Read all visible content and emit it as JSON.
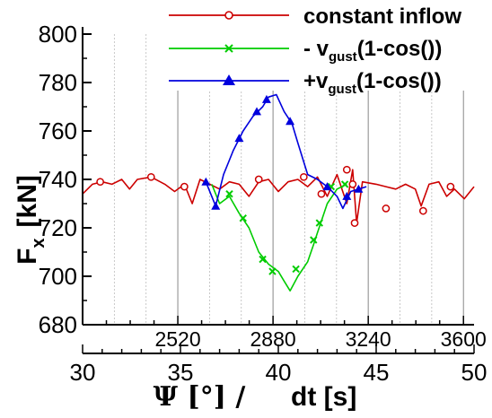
{
  "chart_data": {
    "type": "line",
    "title": "",
    "xlabel_psi": "Ψ [°] /",
    "xlabel_time": "dt [s]",
    "ylabel": "F",
    "ylabel_sub": "x",
    "ylabel_unit": "[kN]",
    "ylim": [
      680,
      800
    ],
    "yticks": [
      680,
      700,
      720,
      740,
      760,
      780,
      800
    ],
    "psi_xlim": [
      2160,
      3640
    ],
    "psi_ticks": [
      2520,
      2880,
      3240,
      3600
    ],
    "time_xlim": [
      30,
      50
    ],
    "time_ticks": [
      30,
      35,
      40,
      45,
      50
    ],
    "grid": "vertical",
    "legend_position": "top-right",
    "legend": [
      {
        "name": "constant inflow",
        "color": "#cc0000",
        "marker": "circle"
      },
      {
        "name_prefix": "- v",
        "name_sub": "gust",
        "name_suffix": "(1-cos())",
        "color": "#00cc00",
        "marker": "x"
      },
      {
        "name_prefix": "+v",
        "name_sub": "gust",
        "name_suffix": "(1-cos())",
        "color": "#0000dd",
        "marker": "triangle"
      }
    ],
    "series": [
      {
        "color": "#cc0000",
        "marker": "circle",
        "points": [
          [
            30.0,
            734
          ],
          [
            30.5,
            738
          ],
          [
            31.0,
            739
          ],
          [
            31.5,
            738
          ],
          [
            32.0,
            740
          ],
          [
            32.4,
            736
          ],
          [
            32.8,
            740
          ],
          [
            33.5,
            741
          ],
          [
            34.2,
            738
          ],
          [
            34.7,
            735
          ],
          [
            35.2,
            738
          ],
          [
            35.6,
            730
          ],
          [
            36.0,
            740
          ],
          [
            36.5,
            738
          ],
          [
            37.0,
            736
          ],
          [
            37.5,
            739
          ],
          [
            38.0,
            738
          ],
          [
            38.5,
            733
          ],
          [
            39.0,
            739
          ],
          [
            39.5,
            740
          ],
          [
            40.0,
            735
          ],
          [
            40.5,
            739
          ],
          [
            41.0,
            740
          ],
          [
            41.5,
            737
          ],
          [
            42.0,
            741
          ],
          [
            42.5,
            733
          ],
          [
            43.0,
            742
          ],
          [
            43.5,
            730
          ],
          [
            43.8,
            744
          ],
          [
            44.0,
            722
          ],
          [
            44.3,
            739
          ],
          [
            45.0,
            738
          ],
          [
            45.5,
            737
          ],
          [
            46.0,
            736
          ],
          [
            46.5,
            738
          ],
          [
            47.0,
            736
          ],
          [
            47.3,
            729
          ],
          [
            47.7,
            738
          ],
          [
            48.2,
            739
          ],
          [
            48.6,
            733
          ],
          [
            49.0,
            736
          ],
          [
            49.5,
            732
          ],
          [
            50.0,
            737
          ]
        ],
        "markers": [
          [
            30.9,
            739
          ],
          [
            33.5,
            741
          ],
          [
            35.2,
            737
          ],
          [
            39.0,
            740
          ],
          [
            41.3,
            741
          ],
          [
            42.2,
            734
          ],
          [
            43.5,
            744
          ],
          [
            43.8,
            738
          ],
          [
            43.9,
            722
          ],
          [
            45.5,
            728
          ],
          [
            47.4,
            727
          ],
          [
            48.8,
            737
          ]
        ]
      },
      {
        "color": "#00cc00",
        "marker": "x",
        "points": [
          [
            36.6,
            738
          ],
          [
            37.0,
            730
          ],
          [
            37.5,
            733
          ],
          [
            38.0,
            726
          ],
          [
            38.5,
            720
          ],
          [
            39.0,
            710
          ],
          [
            39.5,
            705
          ],
          [
            40.0,
            702
          ],
          [
            40.3,
            698
          ],
          [
            40.6,
            694
          ],
          [
            41.0,
            700
          ],
          [
            41.5,
            706
          ],
          [
            41.8,
            713
          ],
          [
            42.0,
            718
          ],
          [
            42.5,
            730
          ],
          [
            43.0,
            736
          ],
          [
            43.5,
            738
          ]
        ],
        "markers": [
          [
            37.5,
            734
          ],
          [
            38.2,
            724
          ],
          [
            39.2,
            707
          ],
          [
            39.7,
            702
          ],
          [
            40.9,
            703
          ],
          [
            41.8,
            715
          ],
          [
            42.1,
            722
          ],
          [
            42.7,
            737
          ],
          [
            43.4,
            738
          ]
        ]
      },
      {
        "color": "#0000dd",
        "marker": "triangle",
        "points": [
          [
            36.3,
            739
          ],
          [
            36.8,
            729
          ],
          [
            37.2,
            742
          ],
          [
            37.7,
            752
          ],
          [
            38.2,
            760
          ],
          [
            38.7,
            766
          ],
          [
            39.2,
            770
          ],
          [
            39.5,
            774
          ],
          [
            39.9,
            775
          ],
          [
            40.3,
            768
          ],
          [
            40.7,
            763
          ],
          [
            41.0,
            755
          ],
          [
            41.5,
            742
          ],
          [
            42.0,
            740
          ],
          [
            42.5,
            737
          ],
          [
            43.0,
            733
          ],
          [
            43.3,
            728
          ],
          [
            43.7,
            735
          ],
          [
            44.1,
            736
          ],
          [
            44.5,
            737
          ]
        ],
        "markers": [
          [
            36.3,
            739
          ],
          [
            36.8,
            729
          ],
          [
            38.0,
            757
          ],
          [
            38.9,
            768
          ],
          [
            39.4,
            773
          ],
          [
            40.6,
            764
          ],
          [
            42.5,
            737
          ],
          [
            43.5,
            733
          ],
          [
            44.1,
            736
          ]
        ]
      }
    ]
  }
}
